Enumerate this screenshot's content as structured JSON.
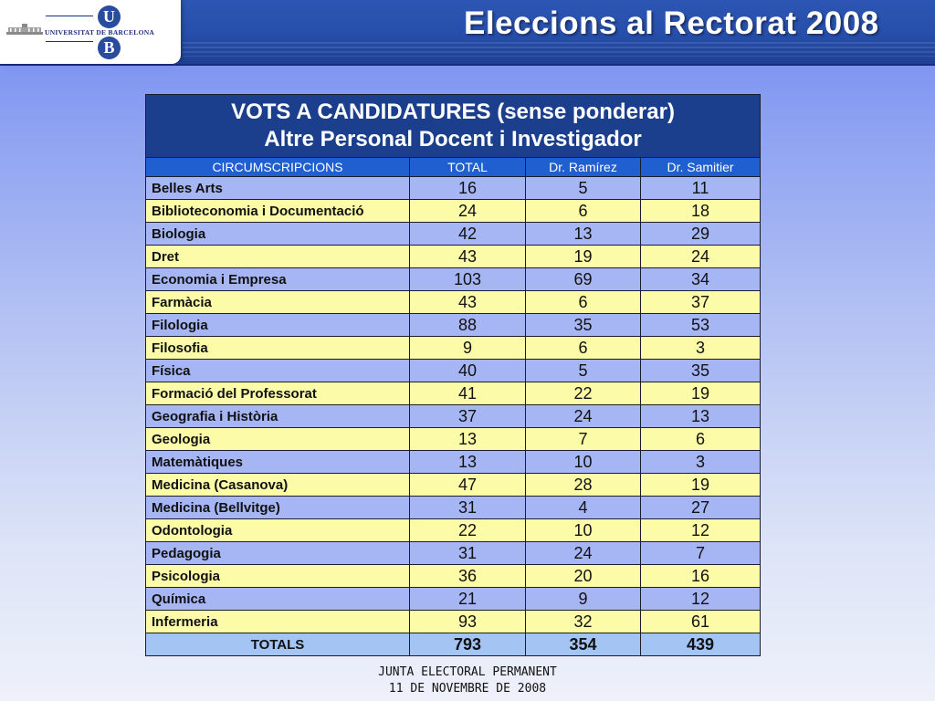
{
  "header": {
    "logo_text": "UNIVERSITAT DE BARCELONA",
    "logo_letters": [
      "U",
      "B"
    ],
    "title": "Eleccions al Rectorat 2008",
    "colors": {
      "header_blue": "#264ea9",
      "title_cell": "#1c3f8d",
      "row_blue": "#a6b6f4",
      "row_yellow": "#fcfca8",
      "totals_row": "#a4c4f4"
    }
  },
  "table": {
    "title_line1": "VOTS A CANDIDATURES (sense ponderar)",
    "title_line2": "Altre Personal Docent i Investigador",
    "columns": [
      "CIRCUMSCRIPCIONS",
      "TOTAL",
      "Dr. Ramírez",
      "Dr. Samitier"
    ],
    "rows": [
      {
        "name": "Belles Arts",
        "total": "16",
        "ramirez": "5",
        "samitier": "11"
      },
      {
        "name": "Biblioteconomia i Documentació",
        "total": "24",
        "ramirez": "6",
        "samitier": "18"
      },
      {
        "name": "Biologia",
        "total": "42",
        "ramirez": "13",
        "samitier": "29"
      },
      {
        "name": "Dret",
        "total": "43",
        "ramirez": "19",
        "samitier": "24"
      },
      {
        "name": "Economia i Empresa",
        "total": "103",
        "ramirez": "69",
        "samitier": "34"
      },
      {
        "name": "Farmàcia",
        "total": "43",
        "ramirez": "6",
        "samitier": "37"
      },
      {
        "name": "Filologia",
        "total": "88",
        "ramirez": "35",
        "samitier": "53"
      },
      {
        "name": "Filosofia",
        "total": "9",
        "ramirez": "6",
        "samitier": "3"
      },
      {
        "name": "Física",
        "total": "40",
        "ramirez": "5",
        "samitier": "35"
      },
      {
        "name": "Formació del Professorat",
        "total": "41",
        "ramirez": "22",
        "samitier": "19"
      },
      {
        "name": "Geografia i Història",
        "total": "37",
        "ramirez": "24",
        "samitier": "13"
      },
      {
        "name": "Geologia",
        "total": "13",
        "ramirez": "7",
        "samitier": "6"
      },
      {
        "name": "Matemàtiques",
        "total": "13",
        "ramirez": "10",
        "samitier": "3"
      },
      {
        "name": "Medicina (Casanova)",
        "total": "47",
        "ramirez": "28",
        "samitier": "19"
      },
      {
        "name": "Medicina (Bellvitge)",
        "total": "31",
        "ramirez": "4",
        "samitier": "27"
      },
      {
        "name": "Odontologia",
        "total": "22",
        "ramirez": "10",
        "samitier": "12"
      },
      {
        "name": "Pedagogia",
        "total": "31",
        "ramirez": "24",
        "samitier": "7"
      },
      {
        "name": "Psicologia",
        "total": "36",
        "ramirez": "20",
        "samitier": "16"
      },
      {
        "name": "Química",
        "total": "21",
        "ramirez": "9",
        "samitier": "12"
      },
      {
        "name": "Infermeria",
        "total": "93",
        "ramirez": "32",
        "samitier": "61"
      }
    ],
    "totals": {
      "label": "TOTALS",
      "total": "793",
      "ramirez": "354",
      "samitier": "439"
    }
  },
  "footer": {
    "line1": "JUNTA ELECTORAL PERMANENT",
    "line2": "11 DE NOVEMBRE DE 2008"
  }
}
